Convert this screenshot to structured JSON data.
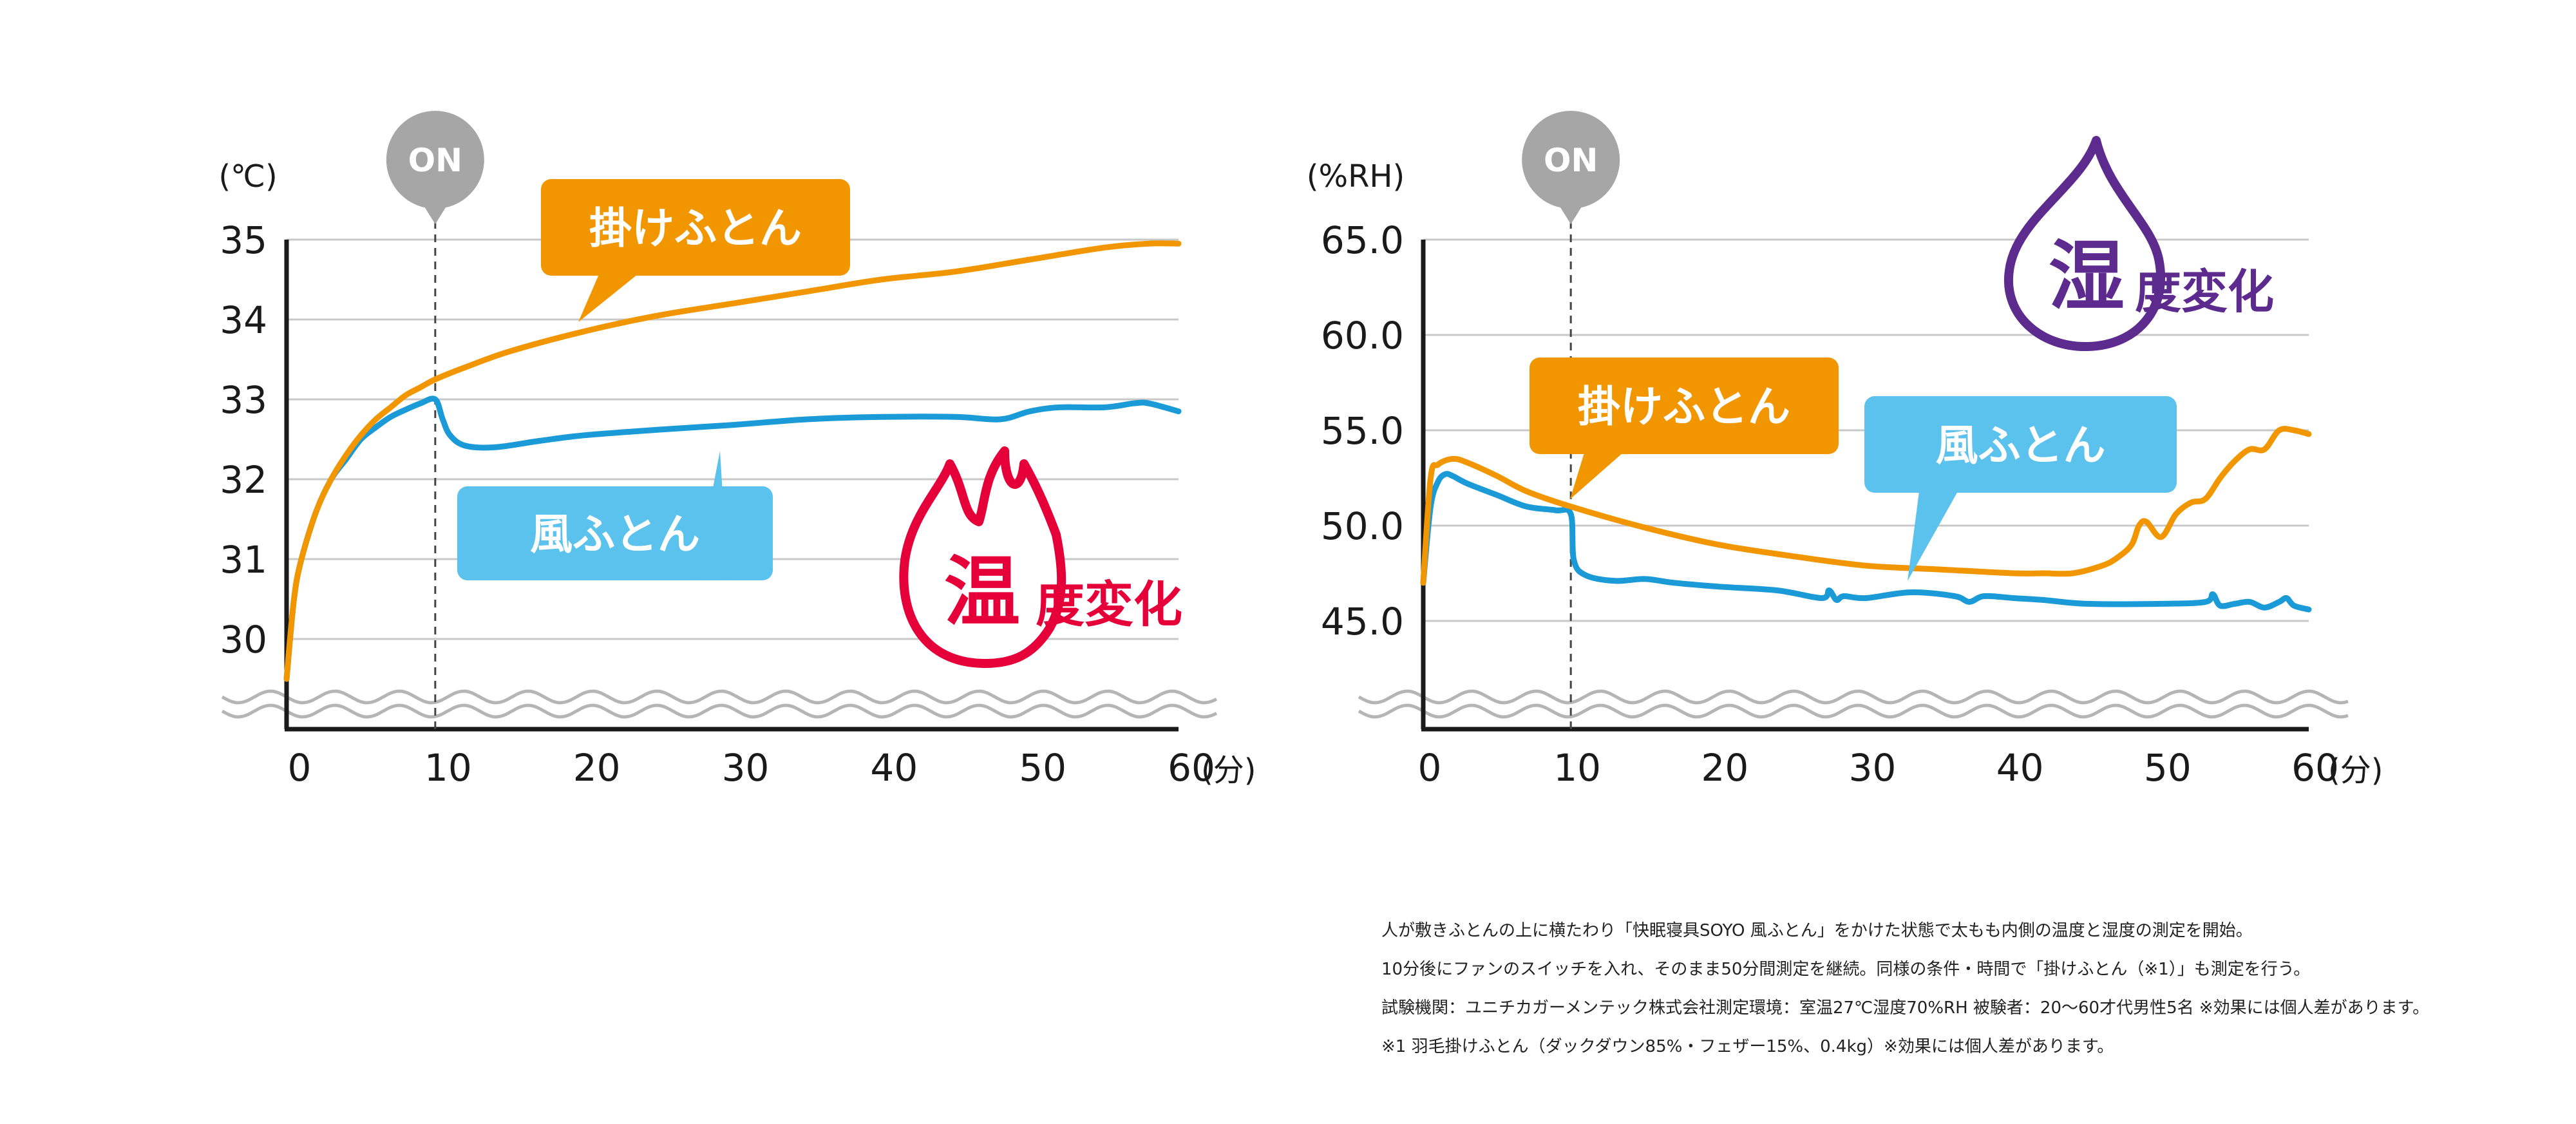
{
  "colors": {
    "kake": "#F29600",
    "kaze": "#1A9AD6",
    "kaze_bubble": "#5BC2EE",
    "temp_accent": "#E60039",
    "humid_accent": "#5D2A8E",
    "on_marker": "#A6A6A6",
    "grid": "#C8C8C8",
    "axis": "#1A1A1A"
  },
  "chart_data": [
    {
      "type": "line",
      "ylabel": "(℃)",
      "xlabel": "(分)",
      "xlim": [
        0,
        60
      ],
      "ylim": [
        30,
        35
      ],
      "x_ticks": [
        "0",
        "10",
        "20",
        "30",
        "40",
        "50",
        "60"
      ],
      "y_ticks": [
        "30",
        "31",
        "32",
        "33",
        "34",
        "35"
      ],
      "on_marker": {
        "label": "ON",
        "x": 10
      },
      "badge": {
        "main": "温",
        "sub": "度変化",
        "icon": "flame-icon"
      },
      "series": [
        {
          "name": "掛けふとん",
          "key": "kake",
          "x": [
            0,
            0.5,
            1,
            2,
            3,
            4,
            5,
            6,
            7,
            8,
            9,
            10,
            12,
            15,
            20,
            25,
            30,
            35,
            40,
            45,
            50,
            55,
            58,
            60
          ],
          "y": [
            29.5,
            30.5,
            31.0,
            31.6,
            32.0,
            32.3,
            32.55,
            32.75,
            32.9,
            33.05,
            33.15,
            33.25,
            33.4,
            33.6,
            33.85,
            34.05,
            34.2,
            34.35,
            34.5,
            34.6,
            34.75,
            34.9,
            34.95,
            34.95
          ]
        },
        {
          "name": "風ふとん",
          "key": "kaze",
          "x": [
            0,
            0.5,
            1,
            2,
            3,
            4,
            5,
            6,
            7,
            8,
            9,
            10,
            10.5,
            11,
            12,
            14,
            17,
            20,
            25,
            30,
            35,
            40,
            45,
            48,
            50,
            52,
            55,
            57,
            58,
            60
          ],
          "y": [
            29.5,
            30.5,
            31.0,
            31.6,
            32.0,
            32.25,
            32.5,
            32.65,
            32.78,
            32.87,
            32.95,
            33.0,
            32.75,
            32.55,
            32.42,
            32.4,
            32.48,
            32.55,
            32.62,
            32.68,
            32.75,
            32.78,
            32.78,
            32.75,
            32.85,
            32.9,
            32.9,
            32.95,
            32.95,
            32.85
          ]
        }
      ]
    },
    {
      "type": "line",
      "ylabel": "(%RH)",
      "xlabel": "(分)",
      "xlim": [
        0,
        60
      ],
      "ylim": [
        45,
        65
      ],
      "x_ticks": [
        "0",
        "10",
        "20",
        "30",
        "40",
        "50",
        "60"
      ],
      "y_ticks": [
        "45.0",
        "50.0",
        "55.0",
        "60.0",
        "65.0"
      ],
      "on_marker": {
        "label": "ON",
        "x": 10
      },
      "badge": {
        "main": "湿",
        "sub": "度変化",
        "icon": "water-drop-icon"
      },
      "series": [
        {
          "name": "掛けふとん",
          "key": "kake",
          "x": [
            0,
            0.5,
            1,
            2,
            3,
            5,
            7,
            10,
            15,
            20,
            25,
            30,
            35,
            40,
            42,
            44,
            46,
            47,
            48,
            48.5,
            49,
            50,
            51,
            52,
            53,
            54,
            55,
            56,
            57,
            58,
            59,
            60
          ],
          "y": [
            47.0,
            52.5,
            53.2,
            53.5,
            53.3,
            52.6,
            51.8,
            51.0,
            49.9,
            49.0,
            48.4,
            47.9,
            47.7,
            47.5,
            47.5,
            47.5,
            47.9,
            48.3,
            49.0,
            50.0,
            50.2,
            49.4,
            50.6,
            51.2,
            51.4,
            52.5,
            53.4,
            54.0,
            54.0,
            55.0,
            55.0,
            54.8
          ]
        },
        {
          "name": "風ふとん",
          "key": "kaze",
          "x": [
            0,
            0.5,
            1,
            1.5,
            2,
            3,
            5,
            7,
            9,
            10,
            10.2,
            11,
            13,
            15,
            17,
            20,
            24,
            27,
            27.5,
            28,
            28.5,
            30,
            33,
            36,
            37,
            38,
            40,
            42,
            45,
            50,
            53,
            53.5,
            54,
            55,
            56,
            57,
            58,
            58.5,
            59,
            60
          ],
          "y": [
            47.0,
            51.0,
            52.3,
            52.7,
            52.6,
            52.2,
            51.6,
            51.0,
            50.8,
            50.6,
            48.2,
            47.4,
            47.1,
            47.2,
            47.0,
            46.8,
            46.6,
            46.2,
            46.6,
            46.1,
            46.3,
            46.2,
            46.5,
            46.3,
            46.0,
            46.3,
            46.2,
            46.1,
            45.9,
            45.9,
            46.0,
            46.4,
            45.8,
            45.9,
            46.0,
            45.7,
            46.0,
            46.2,
            45.8,
            45.6
          ]
        }
      ]
    }
  ],
  "notes": [
    "人が敷きふとんの上に横たわり「快眠寝具SOYO 風ふとん」をかけた状態で太もも内側の温度と湿度の測定を開始。",
    "10分後にファンのスイッチを入れ、そのまま50分間測定を継続。同様の条件・時間で「掛けふとん（※1）」も測定を行う。",
    "試験機関：ユニチカガーメンテック株式会社測定環境：室温27℃湿度70%RH 被験者：20〜60才代男性5名 ※効果には個人差があります。",
    "※1 羽毛掛けふとん（ダックダウン85%・フェザー15%、0.4kg）※効果には個人差があります。"
  ]
}
